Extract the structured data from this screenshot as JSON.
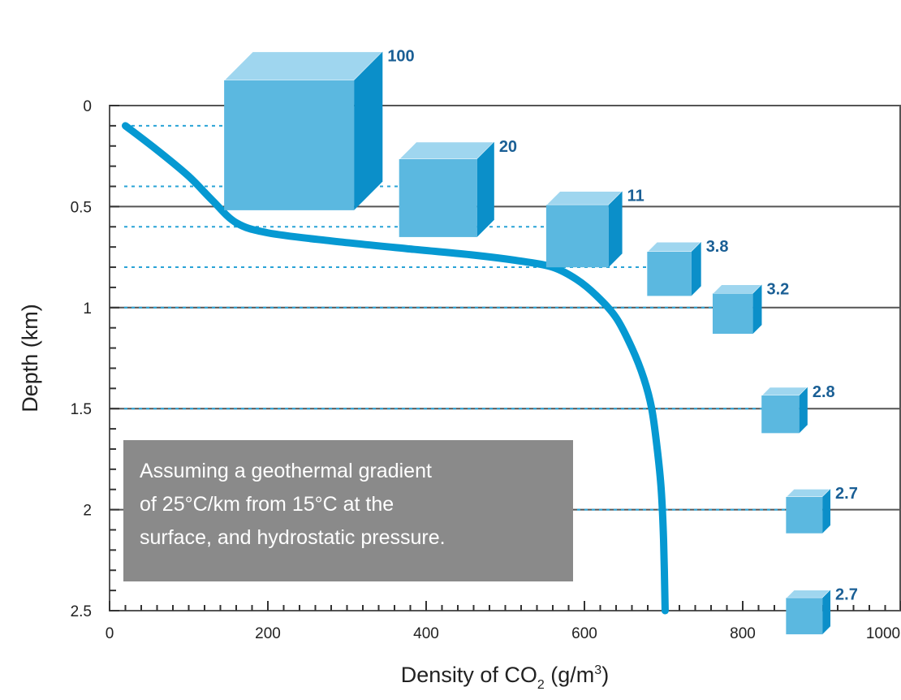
{
  "chart_data": {
    "type": "line",
    "xlabel": {
      "main": "Density of CO",
      "sub": "2",
      "unit_open": " (g/m",
      "sup": "3",
      "unit_close": ")"
    },
    "ylabel": "Depth (km)",
    "xlim": [
      0,
      1000
    ],
    "ylim": [
      0,
      2.5
    ],
    "y_inverted": true,
    "x_ticks": [
      "0",
      "200",
      "400",
      "600",
      "800",
      "1000"
    ],
    "y_ticks": [
      "0",
      "0.5",
      "1",
      "1.5",
      "2",
      "2.5"
    ],
    "x_tick_values": [
      0,
      200,
      400,
      600,
      800,
      1000
    ],
    "y_tick_values": [
      0,
      0.5,
      1,
      1.5,
      2,
      2.5
    ],
    "grid": {
      "horizontal_at": [
        0.5,
        1,
        1.5,
        2
      ],
      "vertical": false
    },
    "series": [
      {
        "x": [
          20,
          60,
          100,
          130,
          160,
          200,
          280,
          380,
          460,
          520,
          560,
          590,
          615,
          640,
          660,
          675,
          685,
          692,
          697,
          700,
          702
        ],
        "y": [
          0.1,
          0.22,
          0.35,
          0.47,
          0.58,
          0.63,
          0.67,
          0.71,
          0.74,
          0.77,
          0.8,
          0.86,
          0.94,
          1.05,
          1.2,
          1.35,
          1.5,
          1.7,
          1.9,
          2.15,
          2.5
        ]
      }
    ],
    "cubes": [
      {
        "label": "100",
        "depth": 0.1,
        "x": 235,
        "size_ratio": 1.0
      },
      {
        "label": "20",
        "depth": 0.4,
        "x": 420,
        "size_ratio": 0.6
      },
      {
        "label": "11",
        "depth": 0.6,
        "x": 595,
        "size_ratio": 0.48
      },
      {
        "label": "3.8",
        "depth": 0.8,
        "x": 710,
        "size_ratio": 0.34
      },
      {
        "label": "3.2",
        "depth": 1.0,
        "x": 790,
        "size_ratio": 0.31
      },
      {
        "label": "2.8",
        "depth": 1.5,
        "x": 850,
        "size_ratio": 0.29
      },
      {
        "label": "2.7",
        "depth": 2.0,
        "x": 880,
        "size_ratio": 0.28
      },
      {
        "label": "2.7",
        "depth": 2.5,
        "x": 880,
        "size_ratio": 0.28
      }
    ],
    "note": [
      "Assuming a geothermal gradient",
      "of 25°C/km from 15°C at the",
      "surface, and hydrostatic pressure."
    ],
    "colors": {
      "curve": "#0699d2",
      "cube_front": "#5bb8e0",
      "cube_top": "#9fd6ef",
      "cube_side": "#0b8fc9",
      "cube_label": "#1a5f95",
      "dotted_line": "#29a3d6",
      "grid": "#555555",
      "note_bg": "#8a8a8a"
    }
  }
}
